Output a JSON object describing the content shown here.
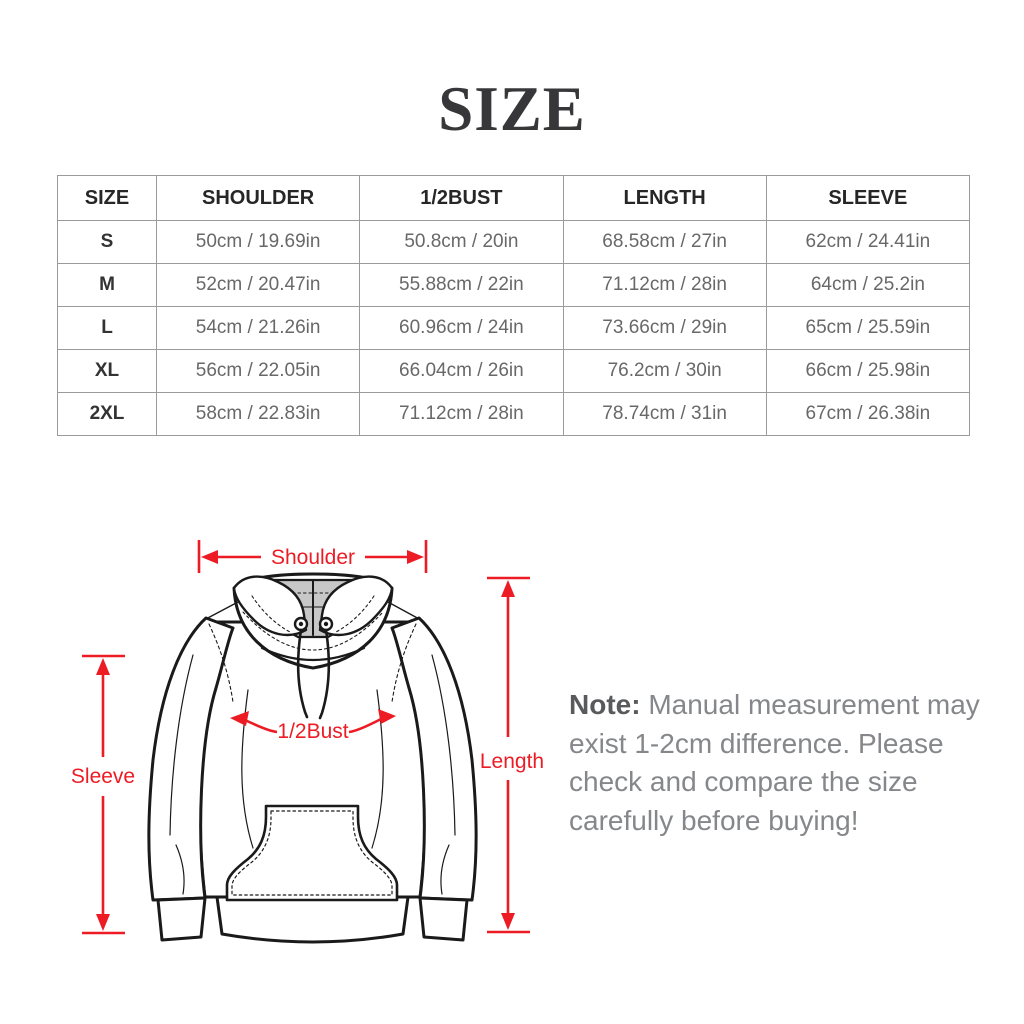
{
  "title": "SIZE",
  "table": {
    "columns": [
      "SIZE",
      "SHOULDER",
      "1/2BUST",
      "LENGTH",
      "SLEEVE"
    ],
    "rows": [
      [
        "S",
        "50cm / 19.69in",
        "50.8cm / 20in",
        "68.58cm / 27in",
        "62cm / 24.41in"
      ],
      [
        "M",
        "52cm / 20.47in",
        "55.88cm / 22in",
        "71.12cm / 28in",
        "64cm / 25.2in"
      ],
      [
        "L",
        "54cm / 21.26in",
        "60.96cm / 24in",
        "73.66cm / 29in",
        "65cm / 25.59in"
      ],
      [
        "XL",
        "56cm / 22.05in",
        "66.04cm / 26in",
        "76.2cm / 30in",
        "66cm / 25.98in"
      ],
      [
        "2XL",
        "58cm / 22.83in",
        "71.12cm / 28in",
        "78.74cm / 31in",
        "67cm / 26.38in"
      ]
    ]
  },
  "diagram": {
    "labels": {
      "shoulder": "Shoulder",
      "half_bust": "1/2Bust",
      "length": "Length",
      "sleeve": "Sleeve"
    },
    "arrow_color": "#ed1c24",
    "sketch_line_color": "#1a1a1a",
    "hood_lining_color": "#c7c7c7"
  },
  "note": {
    "label": "Note:",
    "lines": [
      "Manual measurement may",
      "exist 1-2cm difference. Please",
      "check and compare the size",
      "carefully before buying!"
    ]
  }
}
